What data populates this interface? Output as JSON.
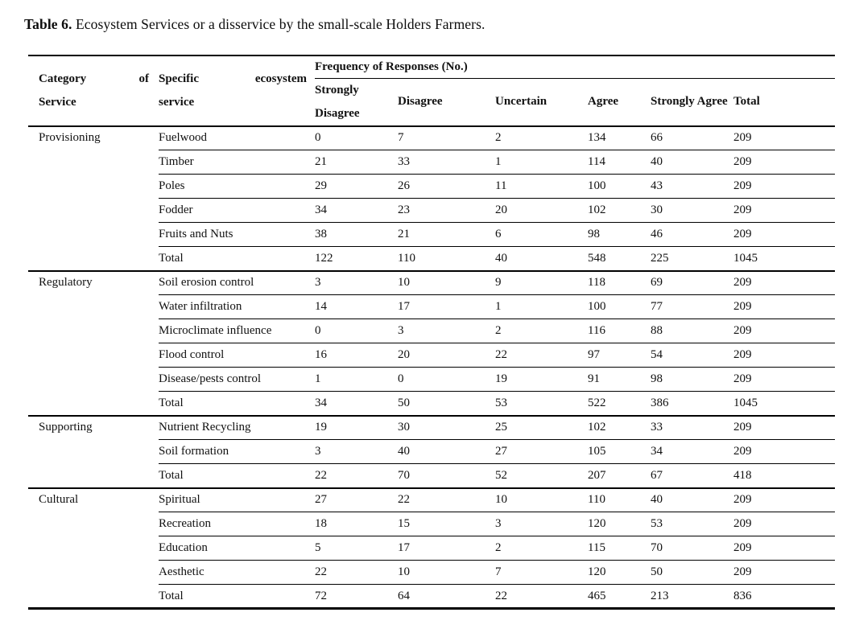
{
  "title": {
    "label": "Table 6.",
    "text": "Ecosystem Services or a disservice by the small-scale Holders Farmers."
  },
  "table": {
    "col_headers": {
      "category": {
        "line1_left": "Category",
        "line1_right": "of",
        "line2": "Service"
      },
      "specific": {
        "line1_left": "Specific",
        "line1_right": "ecosystem",
        "line2": "service"
      },
      "frequency_group": "Frequency of Responses (No.)",
      "response_options": [
        "Strongly Disagree",
        "Disagree",
        "Uncertain",
        "Agree",
        "Strongly Agree",
        "Total"
      ]
    },
    "sections": [
      {
        "category": "Provisioning",
        "rows": [
          {
            "service": "Fuelwood",
            "values": [
              "0",
              "7",
              "2",
              "134",
              "66",
              "209"
            ],
            "is_total": false
          },
          {
            "service": "Timber",
            "values": [
              "21",
              "33",
              "1",
              "114",
              "40",
              "209"
            ],
            "is_total": false
          },
          {
            "service": "Poles",
            "values": [
              "29",
              "26",
              "11",
              "100",
              "43",
              "209"
            ],
            "is_total": false
          },
          {
            "service": "Fodder",
            "values": [
              "34",
              "23",
              "20",
              "102",
              "30",
              "209"
            ],
            "is_total": false
          },
          {
            "service": "Fruits and Nuts",
            "values": [
              "38",
              "21",
              "6",
              "98",
              "46",
              "209"
            ],
            "is_total": false
          },
          {
            "service": "Total",
            "values": [
              "122",
              "110",
              "40",
              "548",
              "225",
              "1045"
            ],
            "is_total": true
          }
        ]
      },
      {
        "category": "Regulatory",
        "rows": [
          {
            "service": "Soil erosion control",
            "values": [
              "3",
              "10",
              "9",
              "118",
              "69",
              "209"
            ],
            "is_total": false
          },
          {
            "service": "Water infiltration",
            "values": [
              "14",
              "17",
              "1",
              "100",
              "77",
              "209"
            ],
            "is_total": false
          },
          {
            "service": "Microclimate influence",
            "values": [
              "0",
              "3",
              "2",
              "116",
              "88",
              "209"
            ],
            "is_total": false
          },
          {
            "service": "Flood control",
            "values": [
              "16",
              "20",
              "22",
              "97",
              "54",
              "209"
            ],
            "is_total": false
          },
          {
            "service": "Disease/pests control",
            "values": [
              "1",
              "0",
              "19",
              "91",
              "98",
              "209"
            ],
            "is_total": false
          },
          {
            "service": "Total",
            "values": [
              "34",
              "50",
              "53",
              "522",
              "386",
              "1045"
            ],
            "is_total": true
          }
        ]
      },
      {
        "category": "Supporting",
        "rows": [
          {
            "service": "Nutrient Recycling",
            "values": [
              "19",
              "30",
              "25",
              "102",
              "33",
              "209"
            ],
            "is_total": false
          },
          {
            "service": "Soil formation",
            "values": [
              "3",
              "40",
              "27",
              "105",
              "34",
              "209"
            ],
            "is_total": false
          },
          {
            "service": "Total",
            "values": [
              "22",
              "70",
              "52",
              "207",
              "67",
              "418"
            ],
            "is_total": true
          }
        ]
      },
      {
        "category": "Cultural",
        "rows": [
          {
            "service": "Spiritual",
            "values": [
              "27",
              "22",
              "10",
              "110",
              "40",
              "209"
            ],
            "is_total": false
          },
          {
            "service": "Recreation",
            "values": [
              "18",
              "15",
              "3",
              "120",
              "53",
              "209"
            ],
            "is_total": false
          },
          {
            "service": "Education",
            "values": [
              "5",
              "17",
              "2",
              "115",
              "70",
              "209"
            ],
            "is_total": false
          },
          {
            "service": "Aesthetic",
            "values": [
              "22",
              "10",
              "7",
              "120",
              "50",
              "209"
            ],
            "is_total": false
          },
          {
            "service": "Total",
            "values": [
              "72",
              "64",
              "22",
              "465",
              "213",
              "836"
            ],
            "is_total": true
          }
        ]
      }
    ]
  },
  "chart_data": {
    "type": "table",
    "title": "Table 6. Ecosystem Services or a disservice by the small-scale Holders Farmers.",
    "columns": [
      "Category of Service",
      "Specific ecosystem service",
      "Strongly Disagree",
      "Disagree",
      "Uncertain",
      "Agree",
      "Strongly Agree",
      "Total"
    ],
    "group_header": "Frequency of Responses (No.)"
  }
}
